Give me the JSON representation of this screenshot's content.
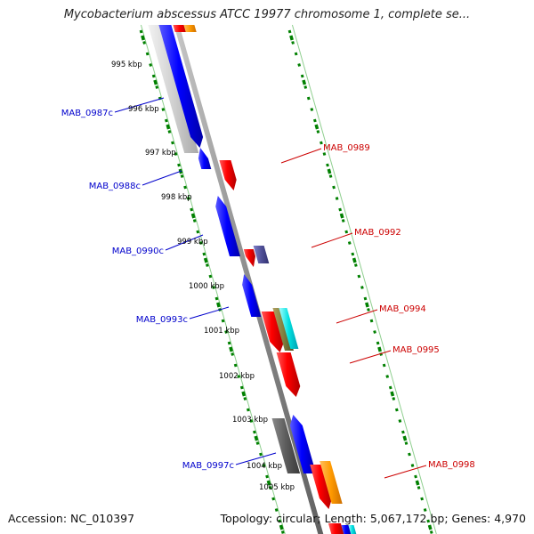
{
  "title": "Mycobacterium abscessus ATCC 19977 chromosome 1, complete se...",
  "footer": {
    "accession": "Accession: NC_010397",
    "summary": "Topology: circular; Length: 5,067,172 bp; Genes: 4,970"
  },
  "colors": {
    "forward_gene": "#ff0000",
    "reverse_gene": "#0000ff",
    "forward_label": "#cc0000",
    "reverse_label": "#0000cc",
    "tick": "#008000",
    "backbone": "#8c8c8c",
    "slice_border": "#8fcf8f"
  },
  "ruler": [
    {
      "label": "995 kbp"
    },
    {
      "label": "996 kbp"
    },
    {
      "label": "997 kbp"
    },
    {
      "label": "998 kbp"
    },
    {
      "label": "999 kbp"
    },
    {
      "label": "1000 kbp"
    },
    {
      "label": "1001 kbp"
    },
    {
      "label": "1002 kbp"
    },
    {
      "label": "1003 kbp"
    },
    {
      "label": "1004 kbp"
    },
    {
      "label": "1005 kbp"
    }
  ],
  "gene_labels": [
    {
      "name": "MAB_0987c",
      "strand": "reverse"
    },
    {
      "name": "MAB_0988c",
      "strand": "reverse"
    },
    {
      "name": "MAB_0990c",
      "strand": "reverse"
    },
    {
      "name": "MAB_0993c",
      "strand": "reverse"
    },
    {
      "name": "MAB_0997c",
      "strand": "reverse"
    },
    {
      "name": "MAB_0989",
      "strand": "forward"
    },
    {
      "name": "MAB_0992",
      "strand": "forward"
    },
    {
      "name": "MAB_0994",
      "strand": "forward"
    },
    {
      "name": "MAB_0995",
      "strand": "forward"
    },
    {
      "name": "MAB_0998",
      "strand": "forward"
    }
  ]
}
